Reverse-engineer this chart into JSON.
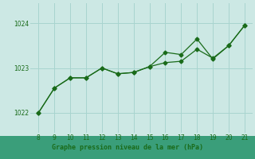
{
  "x": [
    8,
    9,
    10,
    11,
    12,
    13,
    14,
    15,
    16,
    17,
    18,
    19,
    20,
    21
  ],
  "series1": [
    1022.0,
    1022.55,
    1022.78,
    1022.78,
    1023.0,
    1022.87,
    1022.9,
    1023.03,
    1023.12,
    1023.15,
    1023.42,
    1023.22,
    1023.5,
    1023.95
  ],
  "series2": [
    1022.0,
    1022.55,
    1022.78,
    1022.78,
    1023.0,
    1022.87,
    1022.9,
    1023.03,
    1023.35,
    1023.3,
    1023.65,
    1023.2,
    1023.5,
    1023.95
  ],
  "line_color": "#1a6b1a",
  "bg_color": "#cce8e4",
  "grid_color": "#a8d4cf",
  "tick_color": "#1a6b1a",
  "yticks": [
    1022,
    1023,
    1024
  ],
  "ylim": [
    1021.55,
    1024.45
  ],
  "xlim": [
    7.5,
    21.5
  ],
  "footer_bg": "#3a9e7a",
  "footer_text": "Graphe pression niveau de la mer (hPa)",
  "footer_text_color": "#1a6b1a",
  "marker": "D",
  "markersize": 2.5
}
